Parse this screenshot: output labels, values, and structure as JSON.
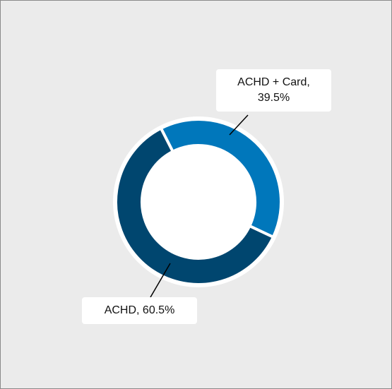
{
  "chart_data": {
    "type": "donut",
    "categories": [
      "ACHD + Card",
      "ACHD"
    ],
    "values": [
      39.5,
      60.5
    ],
    "value_labels": [
      "ACHD + Card, 39.5%",
      "ACHD, 60.5%"
    ],
    "colors": [
      "#0077bb",
      "#00466f"
    ]
  }
}
